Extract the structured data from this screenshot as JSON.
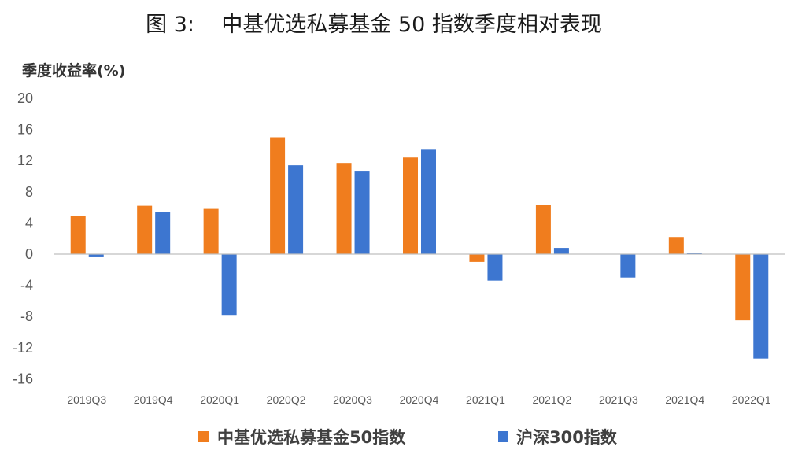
{
  "chart_data": {
    "type": "bar",
    "title": "图 3:    中基优选私募基金 50 指数季度相对表现",
    "ylabel": "季度收益率(%)",
    "xlabel": "",
    "ylim": [
      -16,
      20
    ],
    "yticks": [
      20,
      16,
      12,
      8,
      4,
      0,
      -4,
      -8,
      -12,
      -16
    ],
    "grid": false,
    "legend": "bottom",
    "categories": [
      "2019Q3",
      "2019Q4",
      "2020Q1",
      "2020Q2",
      "2020Q3",
      "2020Q4",
      "2021Q1",
      "2021Q2",
      "2021Q3",
      "2021Q4",
      "2022Q1"
    ],
    "series": [
      {
        "name": "中基优选私募基金50指数",
        "color": "#F07D1E",
        "values": [
          4.9,
          6.2,
          5.9,
          15.0,
          11.7,
          12.4,
          -1.0,
          6.3,
          0.0,
          2.2,
          -8.5
        ]
      },
      {
        "name": "沪深300指数",
        "color": "#3D76D0",
        "values": [
          -0.4,
          5.4,
          -7.8,
          11.4,
          10.7,
          13.4,
          -3.4,
          0.8,
          -3.0,
          0.2,
          -13.4
        ]
      }
    ]
  }
}
